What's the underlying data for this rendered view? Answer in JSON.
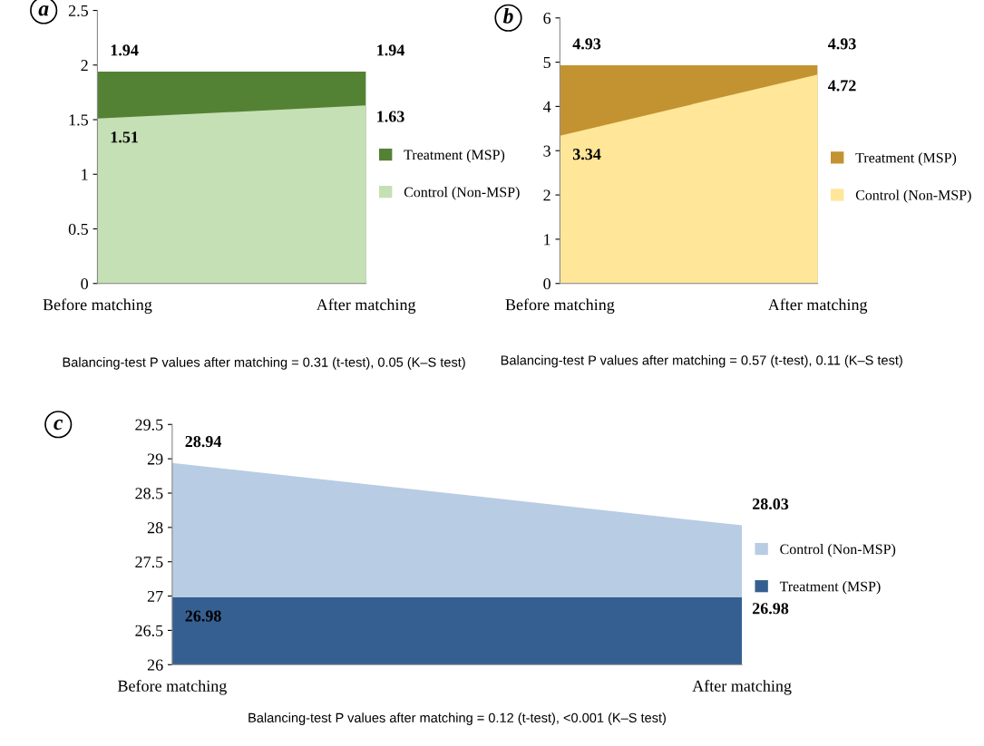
{
  "chart_data": [
    {
      "type": "area",
      "title": "a",
      "categories": [
        "Before matching",
        "After matching"
      ],
      "ylim": [
        0,
        2.5
      ],
      "yticks": [
        0,
        0.5,
        1,
        1.5,
        2,
        2.5
      ],
      "data_labels": true,
      "legend": "right",
      "grid": false,
      "series": [
        {
          "name": "Treatment (MSP)",
          "color": "#548235",
          "values": [
            1.94,
            1.94
          ]
        },
        {
          "name": "Control (Non-MSP)",
          "color": "#c5e0b4",
          "values": [
            1.51,
            1.63
          ]
        }
      ],
      "annotations": [
        "Balancing-test P values after matching = 0.31 (t-test), 0.05 (K–S test)"
      ]
    },
    {
      "type": "area",
      "title": "b",
      "categories": [
        "Before matching",
        "After matching"
      ],
      "ylim": [
        0,
        6
      ],
      "yticks": [
        0,
        1,
        2,
        3,
        4,
        5,
        6
      ],
      "data_labels": true,
      "legend": "right",
      "grid": false,
      "series": [
        {
          "name": "Treatment (MSP)",
          "color": "#c39332",
          "values": [
            4.93,
            4.93
          ]
        },
        {
          "name": "Control (Non-MSP)",
          "color": "#ffe699",
          "values": [
            3.34,
            4.72
          ]
        }
      ],
      "annotations": [
        "Balancing-test P values after matching = 0.57 (t-test), 0.11 (K–S test)"
      ]
    },
    {
      "type": "area",
      "title": "c",
      "categories": [
        "Before matching",
        "After matching"
      ],
      "ylim": [
        26,
        29.5
      ],
      "yticks": [
        26,
        26.5,
        27,
        27.5,
        28,
        28.5,
        29,
        29.5
      ],
      "data_labels": true,
      "legend": "right",
      "grid": false,
      "series": [
        {
          "name": "Control (Non-MSP)",
          "color": "#b8cce4",
          "values": [
            28.94,
            28.03
          ]
        },
        {
          "name": "Treatment (MSP)",
          "color": "#365f91",
          "values": [
            26.98,
            26.98
          ]
        }
      ],
      "annotations": [
        "Balancing-test P values after matching = 0.12 (t-test), <0.001 (K–S test)"
      ]
    }
  ]
}
